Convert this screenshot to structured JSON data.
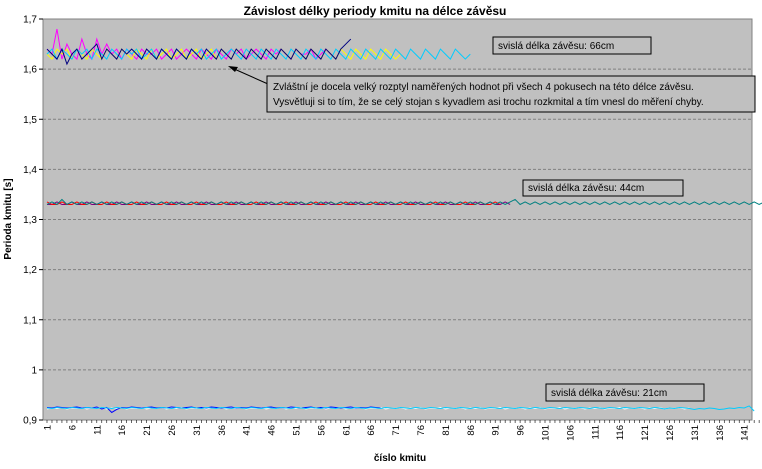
{
  "chart_data": {
    "type": "line",
    "title": "Závislost délky periody kmitu na délce závěsu",
    "xlabel": "číslo kmitu",
    "ylabel": "Perioda kmitu [s]",
    "ylim": [
      0.9,
      1.7
    ],
    "yticks": [
      "0,9",
      "1",
      "1,1",
      "1,2",
      "1,3",
      "1,4",
      "1,5",
      "1,6",
      "1,7"
    ],
    "xlim": [
      1,
      144
    ],
    "xticks": [
      "1",
      "6",
      "11",
      "16",
      "21",
      "26",
      "31",
      "36",
      "41",
      "46",
      "51",
      "56",
      "61",
      "66",
      "71",
      "76",
      "81",
      "86",
      "91",
      "96",
      "101",
      "106",
      "111",
      "116",
      "121",
      "126",
      "131",
      "136",
      "141"
    ],
    "grid": true,
    "background": "#c0c0c0",
    "gridline_color": "#808080",
    "series": [
      {
        "group": "66cm",
        "color": "#ff00ff",
        "start": 1,
        "end": 58,
        "values": [
          1.64,
          1.63,
          1.68,
          1.62,
          1.65,
          1.63,
          1.62,
          1.66,
          1.63,
          1.62,
          1.66,
          1.63,
          1.65,
          1.63,
          1.64,
          1.62,
          1.64,
          1.63,
          1.62,
          1.64,
          1.63,
          1.63,
          1.64,
          1.62,
          1.63,
          1.64,
          1.62,
          1.63,
          1.64,
          1.63,
          1.62,
          1.64,
          1.63,
          1.62,
          1.64,
          1.63,
          1.62,
          1.64,
          1.63,
          1.64,
          1.62,
          1.63,
          1.64,
          1.63,
          1.62,
          1.64,
          1.63,
          1.64,
          1.63,
          1.62,
          1.64,
          1.63,
          1.63,
          1.64,
          1.62,
          1.63,
          1.64,
          1.63
        ]
      },
      {
        "group": "66cm",
        "color": "#ffff00",
        "start": 1,
        "end": 72,
        "values": [
          1.63,
          1.62,
          1.64,
          1.63,
          1.64,
          1.62,
          1.64,
          1.63,
          1.62,
          1.64,
          1.63,
          1.62,
          1.64,
          1.63,
          1.62,
          1.64,
          1.63,
          1.62,
          1.64,
          1.63,
          1.62,
          1.64,
          1.62,
          1.63,
          1.64,
          1.62,
          1.63,
          1.64,
          1.62,
          1.63,
          1.64,
          1.62,
          1.63,
          1.64,
          1.62,
          1.64,
          1.63,
          1.62,
          1.64,
          1.63,
          1.62,
          1.64,
          1.63,
          1.62,
          1.64,
          1.63,
          1.62,
          1.64,
          1.63,
          1.62,
          1.64,
          1.63,
          1.62,
          1.64,
          1.63,
          1.62,
          1.64,
          1.63,
          1.62,
          1.64,
          1.63,
          1.62,
          1.64,
          1.63,
          1.62,
          1.64,
          1.63,
          1.62,
          1.64,
          1.63,
          1.62,
          1.63
        ]
      },
      {
        "group": "66cm",
        "color": "#00ccff",
        "start": 1,
        "end": 86,
        "values": [
          1.63,
          1.64,
          1.62,
          1.64,
          1.63,
          1.62,
          1.64,
          1.63,
          1.64,
          1.62,
          1.64,
          1.63,
          1.62,
          1.64,
          1.63,
          1.62,
          1.64,
          1.63,
          1.64,
          1.62,
          1.63,
          1.64,
          1.62,
          1.64,
          1.63,
          1.62,
          1.64,
          1.63,
          1.62,
          1.64,
          1.63,
          1.64,
          1.62,
          1.63,
          1.64,
          1.62,
          1.63,
          1.64,
          1.63,
          1.62,
          1.64,
          1.63,
          1.62,
          1.64,
          1.63,
          1.62,
          1.64,
          1.63,
          1.62,
          1.64,
          1.63,
          1.62,
          1.64,
          1.63,
          1.62,
          1.64,
          1.63,
          1.62,
          1.64,
          1.63,
          1.62,
          1.64,
          1.63,
          1.62,
          1.64,
          1.63,
          1.62,
          1.64,
          1.63,
          1.62,
          1.64,
          1.63,
          1.62,
          1.64,
          1.63,
          1.62,
          1.64,
          1.63,
          1.62,
          1.64,
          1.63,
          1.62,
          1.64,
          1.63,
          1.62,
          1.63
        ]
      },
      {
        "group": "66cm",
        "color": "#000080",
        "start": 1,
        "end": 62,
        "values": [
          1.64,
          1.63,
          1.62,
          1.64,
          1.61,
          1.63,
          1.64,
          1.62,
          1.63,
          1.64,
          1.65,
          1.62,
          1.64,
          1.63,
          1.62,
          1.64,
          1.63,
          1.64,
          1.63,
          1.62,
          1.64,
          1.63,
          1.62,
          1.64,
          1.63,
          1.62,
          1.64,
          1.63,
          1.62,
          1.64,
          1.63,
          1.62,
          1.64,
          1.63,
          1.62,
          1.64,
          1.63,
          1.62,
          1.64,
          1.63,
          1.62,
          1.64,
          1.63,
          1.62,
          1.64,
          1.63,
          1.62,
          1.64,
          1.63,
          1.62,
          1.64,
          1.63,
          1.62,
          1.64,
          1.63,
          1.62,
          1.64,
          1.63,
          1.62,
          1.64,
          1.65,
          1.66
        ]
      },
      {
        "group": "44cm",
        "color": "#800080",
        "start": 1,
        "end": 94,
        "values": [
          1.33,
          1.33,
          1.335,
          1.33,
          1.33,
          1.335,
          1.33,
          1.33,
          1.335,
          1.33,
          1.33,
          1.335,
          1.33,
          1.33,
          1.335,
          1.33,
          1.33,
          1.335,
          1.33,
          1.33,
          1.335,
          1.33,
          1.33,
          1.335,
          1.33,
          1.33,
          1.335,
          1.33,
          1.33,
          1.335,
          1.33,
          1.33,
          1.335,
          1.33,
          1.33,
          1.335,
          1.33,
          1.33,
          1.335,
          1.33,
          1.33,
          1.335,
          1.33,
          1.33,
          1.335,
          1.33,
          1.33,
          1.335,
          1.33,
          1.33,
          1.335,
          1.33,
          1.33,
          1.335,
          1.33,
          1.33,
          1.335,
          1.33,
          1.33,
          1.335,
          1.33,
          1.33,
          1.335,
          1.33,
          1.33,
          1.335,
          1.33,
          1.33,
          1.335,
          1.33,
          1.33,
          1.335,
          1.33,
          1.33,
          1.335,
          1.33,
          1.33,
          1.335,
          1.33,
          1.33,
          1.335,
          1.33,
          1.33,
          1.335,
          1.33,
          1.33,
          1.335,
          1.33,
          1.33,
          1.335,
          1.33,
          1.33,
          1.335,
          1.33
        ]
      },
      {
        "group": "44cm",
        "color": "#ff0000",
        "start": 1,
        "end": 92,
        "values": [
          1.335,
          1.33,
          1.33,
          1.335,
          1.33,
          1.33,
          1.335,
          1.33,
          1.33,
          1.335,
          1.33,
          1.33,
          1.335,
          1.33,
          1.33,
          1.335,
          1.33,
          1.33,
          1.335,
          1.33,
          1.33,
          1.335,
          1.33,
          1.33,
          1.335,
          1.33,
          1.33,
          1.335,
          1.33,
          1.33,
          1.335,
          1.33,
          1.33,
          1.335,
          1.33,
          1.33,
          1.335,
          1.33,
          1.33,
          1.335,
          1.33,
          1.33,
          1.335,
          1.33,
          1.33,
          1.335,
          1.33,
          1.33,
          1.335,
          1.33,
          1.33,
          1.335,
          1.33,
          1.33,
          1.335,
          1.33,
          1.33,
          1.335,
          1.33,
          1.33,
          1.335,
          1.33,
          1.33,
          1.335,
          1.33,
          1.33,
          1.335,
          1.33,
          1.33,
          1.335,
          1.33,
          1.33,
          1.335,
          1.33,
          1.33,
          1.335,
          1.33,
          1.33,
          1.335,
          1.33,
          1.33,
          1.335,
          1.33,
          1.33,
          1.335,
          1.33,
          1.33,
          1.335,
          1.33,
          1.33,
          1.335,
          1.33
        ]
      },
      {
        "group": "44cm",
        "color": "#008080",
        "start": 1,
        "end": 144,
        "values": [
          1.33,
          1.335,
          1.33,
          1.34,
          1.33,
          1.335,
          1.33,
          1.335,
          1.33,
          1.335,
          1.33,
          1.335,
          1.33,
          1.335,
          1.33,
          1.335,
          1.33,
          1.335,
          1.33,
          1.335,
          1.33,
          1.335,
          1.33,
          1.335,
          1.33,
          1.335,
          1.33,
          1.335,
          1.33,
          1.335,
          1.33,
          1.335,
          1.33,
          1.335,
          1.33,
          1.335,
          1.33,
          1.335,
          1.33,
          1.335,
          1.33,
          1.335,
          1.33,
          1.335,
          1.33,
          1.335,
          1.33,
          1.335,
          1.33,
          1.335,
          1.33,
          1.335,
          1.33,
          1.335,
          1.33,
          1.335,
          1.33,
          1.335,
          1.33,
          1.335,
          1.33,
          1.335,
          1.33,
          1.335,
          1.33,
          1.335,
          1.33,
          1.335,
          1.33,
          1.335,
          1.33,
          1.335,
          1.33,
          1.335,
          1.33,
          1.335,
          1.33,
          1.335,
          1.33,
          1.335,
          1.33,
          1.335,
          1.33,
          1.335,
          1.33,
          1.335,
          1.33,
          1.335,
          1.33,
          1.335,
          1.33,
          1.335,
          1.33,
          1.335,
          1.34,
          1.33,
          1.335,
          1.33,
          1.335,
          1.33,
          1.335,
          1.33,
          1.335,
          1.33,
          1.335,
          1.33,
          1.335,
          1.33,
          1.335,
          1.33,
          1.335,
          1.33,
          1.335,
          1.33,
          1.335,
          1.33,
          1.335,
          1.33,
          1.335,
          1.33,
          1.335,
          1.33,
          1.335,
          1.33,
          1.335,
          1.33,
          1.335,
          1.33,
          1.335,
          1.33,
          1.335,
          1.33,
          1.335,
          1.33,
          1.335,
          1.33,
          1.335,
          1.33,
          1.335,
          1.33,
          1.335,
          1.33,
          1.335,
          1.33,
          1.335,
          1.33
        ]
      },
      {
        "group": "21cm",
        "color": "#ffffff",
        "start": 1,
        "end": 130,
        "values": [
          0.922,
          0.924,
          0.923,
          0.925,
          0.922,
          0.924,
          0.923,
          0.925,
          0.922,
          0.924,
          0.923,
          0.925,
          0.922,
          0.924,
          0.923,
          0.925,
          0.922,
          0.924,
          0.923,
          0.925,
          0.922,
          0.924,
          0.923,
          0.925,
          0.922,
          0.924,
          0.923,
          0.925,
          0.922,
          0.924,
          0.923,
          0.925,
          0.922,
          0.924,
          0.923,
          0.925,
          0.922,
          0.924,
          0.923,
          0.925,
          0.922,
          0.924,
          0.923,
          0.925,
          0.922,
          0.924,
          0.923,
          0.925,
          0.922,
          0.924,
          0.923,
          0.925,
          0.922,
          0.924,
          0.923,
          0.925,
          0.922,
          0.924,
          0.923,
          0.925,
          0.922,
          0.924,
          0.923,
          0.925,
          0.922,
          0.924,
          0.923,
          0.925,
          0.922,
          0.924,
          0.923,
          0.925,
          0.922,
          0.924,
          0.923,
          0.925,
          0.922,
          0.924,
          0.923,
          0.925,
          0.922,
          0.924,
          0.923,
          0.925,
          0.922,
          0.924,
          0.923,
          0.925,
          0.922,
          0.924,
          0.923,
          0.925,
          0.922,
          0.924,
          0.923,
          0.925,
          0.922,
          0.924,
          0.923,
          0.925,
          0.922,
          0.924,
          0.923,
          0.925,
          0.922,
          0.924,
          0.923,
          0.925,
          0.922,
          0.924,
          0.923,
          0.925,
          0.922,
          0.924,
          0.923,
          0.925,
          0.922,
          0.924,
          0.923,
          0.925,
          0.922,
          0.924,
          0.923,
          0.925,
          0.922,
          0.924,
          0.923,
          0.925,
          0.922,
          0.924
        ]
      },
      {
        "group": "21cm",
        "color": "#0000ff",
        "start": 1,
        "end": 68,
        "values": [
          0.925,
          0.924,
          0.926,
          0.925,
          0.924,
          0.925,
          0.926,
          0.924,
          0.925,
          0.924,
          0.926,
          0.922,
          0.925,
          0.915,
          0.921,
          0.925,
          0.924,
          0.926,
          0.925,
          0.924,
          0.925,
          0.926,
          0.924,
          0.925,
          0.924,
          0.926,
          0.925,
          0.924,
          0.925,
          0.926,
          0.924,
          0.925,
          0.924,
          0.926,
          0.925,
          0.924,
          0.925,
          0.926,
          0.924,
          0.925,
          0.924,
          0.926,
          0.925,
          0.924,
          0.925,
          0.926,
          0.924,
          0.925,
          0.924,
          0.926,
          0.925,
          0.924,
          0.925,
          0.926,
          0.924,
          0.925,
          0.924,
          0.926,
          0.925,
          0.924,
          0.925,
          0.926,
          0.924,
          0.925,
          0.924,
          0.926,
          0.925,
          0.924
        ]
      },
      {
        "group": "21cm",
        "color": "#00ccff",
        "start": 1,
        "end": 144,
        "values": [
          0.924,
          0.923,
          0.925,
          0.924,
          0.923,
          0.925,
          0.924,
          0.923,
          0.925,
          0.924,
          0.923,
          0.925,
          0.924,
          0.923,
          0.925,
          0.924,
          0.923,
          0.925,
          0.924,
          0.923,
          0.925,
          0.924,
          0.923,
          0.925,
          0.924,
          0.923,
          0.925,
          0.924,
          0.923,
          0.925,
          0.924,
          0.923,
          0.925,
          0.924,
          0.923,
          0.925,
          0.924,
          0.923,
          0.925,
          0.924,
          0.923,
          0.925,
          0.924,
          0.923,
          0.925,
          0.924,
          0.923,
          0.925,
          0.924,
          0.923,
          0.925,
          0.924,
          0.923,
          0.925,
          0.924,
          0.923,
          0.925,
          0.924,
          0.923,
          0.925,
          0.924,
          0.923,
          0.925,
          0.924,
          0.923,
          0.925,
          0.924,
          0.923,
          0.925,
          0.924,
          0.923,
          0.925,
          0.924,
          0.923,
          0.925,
          0.924,
          0.923,
          0.925,
          0.924,
          0.923,
          0.925,
          0.924,
          0.923,
          0.925,
          0.924,
          0.923,
          0.925,
          0.924,
          0.923,
          0.925,
          0.924,
          0.923,
          0.925,
          0.924,
          0.923,
          0.925,
          0.924,
          0.923,
          0.925,
          0.924,
          0.923,
          0.925,
          0.924,
          0.923,
          0.925,
          0.924,
          0.923,
          0.925,
          0.924,
          0.923,
          0.925,
          0.924,
          0.923,
          0.925,
          0.924,
          0.923,
          0.925,
          0.924,
          0.923,
          0.925,
          0.924,
          0.923,
          0.925,
          0.924,
          0.922,
          0.924,
          0.923,
          0.925,
          0.924,
          0.923,
          0.921,
          0.923,
          0.922,
          0.924,
          0.923,
          0.921,
          0.922,
          0.924,
          0.923,
          0.925,
          0.924,
          0.928,
          0.918
        ]
      }
    ],
    "annotations": [
      {
        "text": "svislá délka závěsu: 66cm",
        "near_y": 1.65
      },
      {
        "text": "svislá délka závěsu: 44cm",
        "near_y": 1.34
      },
      {
        "text": "svislá délka závěsu: 21cm",
        "near_y": 0.93
      },
      {
        "text_lines": [
          "Zvláštní je docela velký rozptyl naměřených hodnot při všech 4 pokusech na této délce závěsu.",
          "Vysvětluji si to tím, že se celý stojan s kyvadlem asi trochu rozkmital a tím vnesl do měření chyby."
        ],
        "points_to": {
          "x": 37,
          "y": 1.62
        }
      }
    ]
  }
}
